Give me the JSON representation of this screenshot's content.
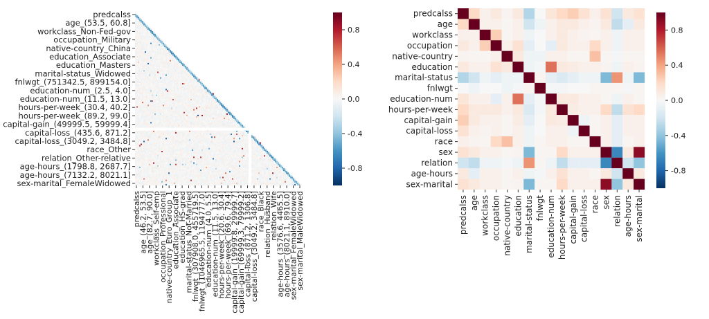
{
  "chart_data": [
    {
      "type": "heatmap",
      "variant": "lower-triangle",
      "title": "",
      "colormap": "RdBu_r",
      "vmin": -1,
      "vmax": 1,
      "colorbar_ticks": [
        "0.8",
        "0.4",
        "0.0",
        "-0.4",
        "-0.8"
      ],
      "colorbar_tick_values": [
        0.8,
        0.4,
        0.0,
        -0.4,
        -0.8
      ],
      "y_tick_labels": [
        "predcalss",
        "age_(53.5, 60.8]",
        "workclass_Non-Fed-gov",
        "occupation_Military",
        "native-country_China",
        "education_Associate",
        "education_Masters",
        "marital-status_Widowed",
        "fnlwgt_(751342.5, 899154.0]",
        "education-num_(2.5, 4.0]",
        "education-num_(11.5, 13.0]",
        "hours-per-week_(30.4, 40.2]",
        "hours-per-week_(89.2, 99.0]",
        "capital-gain_(49999.5, 59999.4]",
        "capital-loss_(435.6, 871.2]",
        "capital-loss_(3049.2, 3484.8]",
        "race_Other",
        "relation_Other-relative",
        "age-hours_(1798.8, 2687.7]",
        "age-hours_(7132.2, 8021.1]",
        "sex-marital_FemaleWidowed"
      ],
      "x_tick_labels": [
        "predcalss",
        "age_(46.2, 53.5]",
        "age_(82.7, 90.0]",
        "workclass_Self-emp",
        "occupation_Professional",
        "native-country_Euro_Group_1",
        "education_Associate",
        "education_HS-grad",
        "marital-status_Not-Married",
        "fnlwgt_(307908.0, 455719.5]",
        "fnlwgt_(1046965.5, 1194777.0]",
        "education-num_(4.0, 5.5]",
        "education-num_(11.5, 13.0]",
        "hours-per-week_(20.6, 30.4]",
        "hours-per-week_(69.6, 79.4]",
        "capital-gain_(19999.8, 29999.7]",
        "capital-gain_(69999.3, 79999.2]",
        "capital-loss_(871.2, 1306.8]",
        "capital-loss_(3049.2, 3484.8]",
        "race_Black",
        "relation_Husband",
        "relation_Wife",
        "age-hours_(3576.6, 4465.5]",
        "age-hours_(8021.1, 8910.0]",
        "sex-marital_FemaleWidowed",
        "sex-marital_MaleWidowed"
      ]
    },
    {
      "type": "heatmap",
      "title": "",
      "colormap": "RdBu_r",
      "vmin": -1,
      "vmax": 1,
      "colorbar_ticks": [
        "0.8",
        "0.4",
        "0.0",
        "-0.4",
        "-0.8"
      ],
      "colorbar_tick_values": [
        0.8,
        0.4,
        0.0,
        -0.4,
        -0.8
      ],
      "labels": [
        "predcalss",
        "age",
        "workclass",
        "occupation",
        "native-country",
        "education",
        "marital-status",
        "fnlwgt",
        "education-num",
        "hours-per-week",
        "capital-gain",
        "capital-loss",
        "race",
        "sex",
        "relation",
        "age-hours",
        "sex-marital"
      ],
      "matrix": [
        [
          1.0,
          0.2,
          0.05,
          0.1,
          0.03,
          0.1,
          -0.3,
          0.0,
          0.12,
          0.2,
          0.25,
          0.15,
          0.05,
          0.15,
          -0.2,
          0.1,
          0.15
        ],
        [
          0.2,
          1.0,
          0.05,
          0.05,
          0.02,
          0.05,
          -0.2,
          -0.05,
          0.05,
          0.1,
          0.1,
          0.05,
          0.03,
          0.1,
          -0.25,
          -0.1,
          0.1
        ],
        [
          0.05,
          0.05,
          1.0,
          0.25,
          0.02,
          0.05,
          -0.05,
          0.0,
          0.05,
          0.1,
          0.05,
          0.03,
          0.02,
          0.05,
          -0.05,
          0.05,
          0.05
        ],
        [
          0.1,
          0.05,
          0.25,
          1.0,
          0.05,
          0.15,
          -0.1,
          0.0,
          -0.1,
          0.1,
          0.05,
          0.05,
          0.2,
          0.05,
          -0.05,
          0.05,
          0.05
        ],
        [
          0.03,
          0.02,
          0.02,
          0.05,
          1.0,
          0.1,
          -0.05,
          -0.05,
          0.05,
          0.05,
          0.02,
          0.02,
          0.3,
          0.02,
          -0.02,
          0.02,
          0.02
        ],
        [
          0.1,
          0.05,
          0.05,
          0.15,
          0.1,
          1.0,
          -0.05,
          -0.02,
          0.55,
          0.1,
          0.08,
          0.05,
          0.05,
          0.03,
          -0.05,
          0.05,
          0.03
        ],
        [
          -0.3,
          -0.2,
          -0.05,
          -0.1,
          -0.05,
          -0.05,
          1.0,
          0.03,
          -0.1,
          -0.15,
          -0.1,
          -0.05,
          -0.05,
          -0.45,
          0.45,
          -0.05,
          -0.45
        ],
        [
          0.0,
          -0.05,
          0.0,
          0.0,
          -0.05,
          -0.02,
          0.03,
          1.0,
          -0.02,
          -0.02,
          0.0,
          0.0,
          0.02,
          0.02,
          0.02,
          -0.02,
          0.02
        ],
        [
          0.12,
          0.05,
          0.05,
          -0.1,
          0.05,
          0.55,
          -0.1,
          -0.02,
          1.0,
          0.1,
          0.1,
          0.05,
          0.05,
          0.02,
          -0.05,
          0.05,
          0.02
        ],
        [
          0.2,
          0.1,
          0.1,
          0.1,
          0.05,
          0.1,
          -0.15,
          -0.02,
          0.1,
          1.0,
          0.08,
          0.05,
          0.05,
          0.2,
          -0.25,
          0.15,
          0.2
        ],
        [
          0.25,
          0.1,
          0.05,
          0.05,
          0.02,
          0.08,
          -0.1,
          0.0,
          0.1,
          0.08,
          1.0,
          -0.05,
          0.02,
          0.05,
          -0.1,
          0.05,
          0.05
        ],
        [
          0.15,
          0.05,
          0.03,
          0.05,
          0.02,
          0.05,
          -0.05,
          0.0,
          0.05,
          0.05,
          -0.05,
          1.0,
          0.02,
          0.05,
          -0.1,
          0.05,
          0.05
        ],
        [
          0.05,
          0.03,
          0.02,
          0.2,
          0.3,
          0.05,
          -0.05,
          0.02,
          0.05,
          0.05,
          0.02,
          0.02,
          1.0,
          0.05,
          -0.1,
          0.02,
          0.05
        ],
        [
          0.15,
          0.1,
          0.05,
          0.05,
          0.02,
          0.03,
          -0.45,
          0.02,
          0.02,
          0.2,
          0.05,
          0.05,
          0.05,
          1.0,
          -0.65,
          0.1,
          0.9
        ],
        [
          -0.2,
          -0.25,
          -0.05,
          -0.05,
          -0.02,
          -0.05,
          0.45,
          0.02,
          -0.05,
          -0.25,
          -0.1,
          -0.1,
          -0.1,
          -0.65,
          1.0,
          -0.2,
          -0.4
        ],
        [
          0.1,
          -0.1,
          0.05,
          0.05,
          0.02,
          0.05,
          -0.05,
          -0.02,
          0.05,
          0.15,
          0.05,
          0.05,
          0.02,
          0.1,
          -0.2,
          1.0,
          0.1
        ],
        [
          0.15,
          0.1,
          0.05,
          0.05,
          0.02,
          0.03,
          -0.45,
          0.02,
          0.02,
          0.2,
          0.05,
          0.05,
          0.05,
          0.9,
          -0.4,
          0.1,
          1.0
        ]
      ]
    }
  ]
}
